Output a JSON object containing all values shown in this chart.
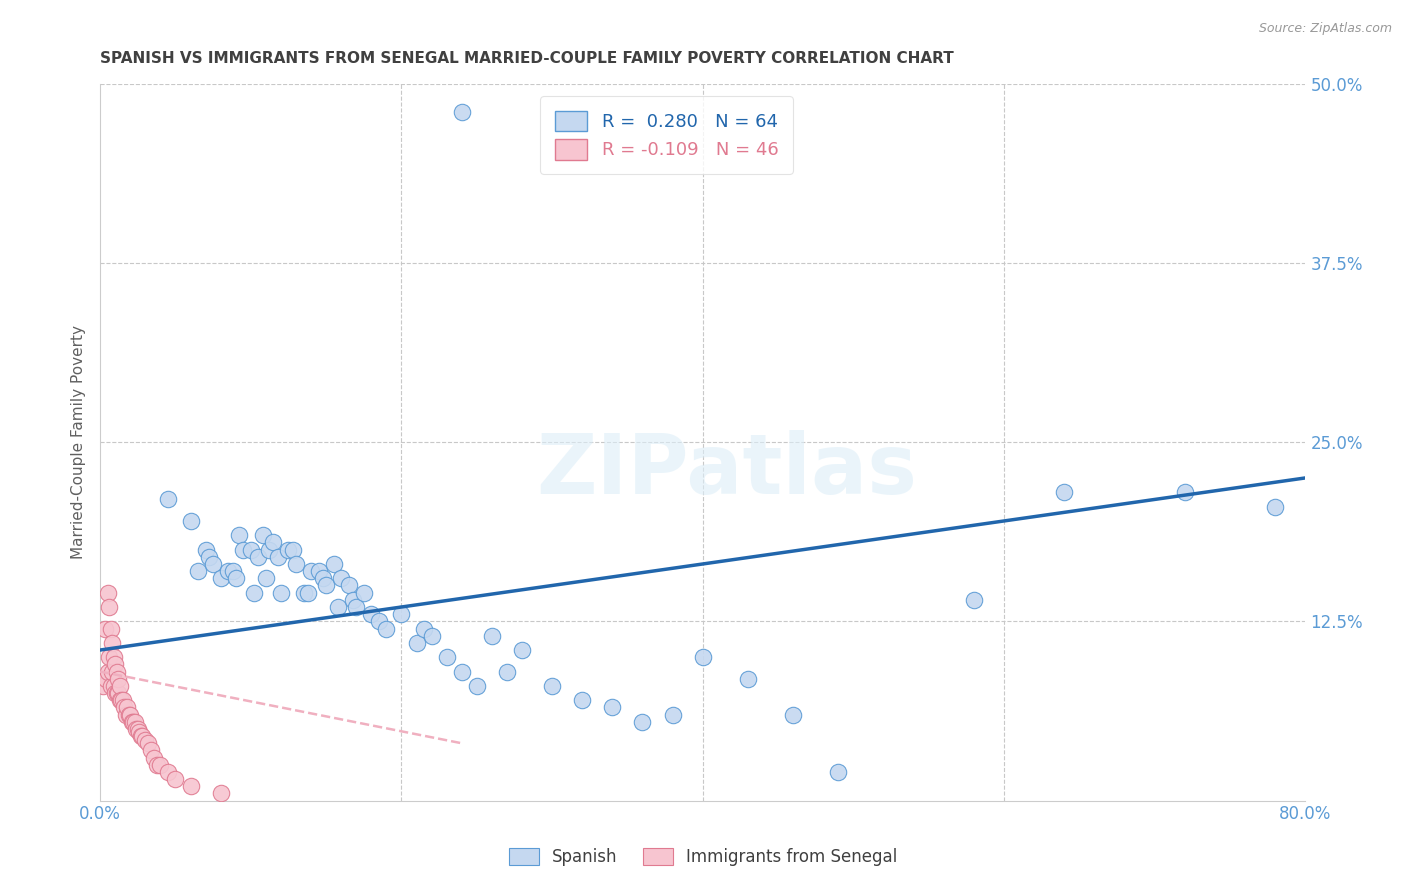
{
  "title": "SPANISH VS IMMIGRANTS FROM SENEGAL MARRIED-COUPLE FAMILY POVERTY CORRELATION CHART",
  "source": "Source: ZipAtlas.com",
  "ylabel": "Married-Couple Family Poverty",
  "xlim": [
    0.0,
    0.8
  ],
  "ylim": [
    0.0,
    0.5
  ],
  "legend_R1": "R =  0.280",
  "legend_N1": "N = 64",
  "legend_R2": "R = -0.109",
  "legend_N2": "N = 46",
  "color_spanish_fill": "#c5d8f0",
  "color_spanish_edge": "#5b9bd5",
  "color_senegal_fill": "#f7c5d0",
  "color_senegal_edge": "#e07a90",
  "color_line_spanish": "#2166ac",
  "color_line_senegal": "#f0b0c0",
  "watermark": "ZIPatlas",
  "background_color": "#ffffff",
  "grid_color": "#c8c8c8",
  "title_color": "#404040",
  "axis_label_color": "#606060",
  "tick_color": "#5b9bd5",
  "spanish_x": [
    0.24,
    0.045,
    0.06,
    0.065,
    0.07,
    0.072,
    0.075,
    0.08,
    0.085,
    0.088,
    0.09,
    0.092,
    0.095,
    0.1,
    0.102,
    0.105,
    0.108,
    0.11,
    0.112,
    0.115,
    0.118,
    0.12,
    0.125,
    0.128,
    0.13,
    0.135,
    0.138,
    0.14,
    0.145,
    0.148,
    0.15,
    0.155,
    0.158,
    0.16,
    0.165,
    0.168,
    0.17,
    0.175,
    0.18,
    0.185,
    0.19,
    0.2,
    0.21,
    0.215,
    0.22,
    0.23,
    0.24,
    0.25,
    0.26,
    0.27,
    0.28,
    0.3,
    0.32,
    0.34,
    0.36,
    0.38,
    0.4,
    0.43,
    0.46,
    0.49,
    0.58,
    0.64,
    0.72,
    0.78
  ],
  "spanish_y": [
    0.48,
    0.21,
    0.195,
    0.16,
    0.175,
    0.17,
    0.165,
    0.155,
    0.16,
    0.16,
    0.155,
    0.185,
    0.175,
    0.175,
    0.145,
    0.17,
    0.185,
    0.155,
    0.175,
    0.18,
    0.17,
    0.145,
    0.175,
    0.175,
    0.165,
    0.145,
    0.145,
    0.16,
    0.16,
    0.155,
    0.15,
    0.165,
    0.135,
    0.155,
    0.15,
    0.14,
    0.135,
    0.145,
    0.13,
    0.125,
    0.12,
    0.13,
    0.11,
    0.12,
    0.115,
    0.1,
    0.09,
    0.08,
    0.115,
    0.09,
    0.105,
    0.08,
    0.07,
    0.065,
    0.055,
    0.06,
    0.1,
    0.085,
    0.06,
    0.02,
    0.14,
    0.215,
    0.215,
    0.205
  ],
  "senegal_x": [
    0.002,
    0.003,
    0.004,
    0.005,
    0.005,
    0.006,
    0.006,
    0.007,
    0.007,
    0.008,
    0.008,
    0.009,
    0.009,
    0.01,
    0.01,
    0.011,
    0.011,
    0.012,
    0.012,
    0.013,
    0.013,
    0.014,
    0.015,
    0.016,
    0.017,
    0.018,
    0.019,
    0.02,
    0.021,
    0.022,
    0.023,
    0.024,
    0.025,
    0.026,
    0.027,
    0.028,
    0.03,
    0.032,
    0.034,
    0.036,
    0.038,
    0.04,
    0.045,
    0.05,
    0.06,
    0.08
  ],
  "senegal_y": [
    0.08,
    0.12,
    0.085,
    0.09,
    0.145,
    0.1,
    0.135,
    0.08,
    0.12,
    0.09,
    0.11,
    0.08,
    0.1,
    0.075,
    0.095,
    0.075,
    0.09,
    0.075,
    0.085,
    0.07,
    0.08,
    0.07,
    0.07,
    0.065,
    0.06,
    0.065,
    0.06,
    0.06,
    0.055,
    0.055,
    0.055,
    0.05,
    0.05,
    0.048,
    0.045,
    0.045,
    0.042,
    0.04,
    0.035,
    0.03,
    0.025,
    0.025,
    0.02,
    0.015,
    0.01,
    0.005
  ],
  "sp_line_x": [
    0.0,
    0.8
  ],
  "sp_line_y": [
    0.105,
    0.225
  ],
  "sn_line_x": [
    0.0,
    0.24
  ],
  "sn_line_y": [
    0.09,
    0.04
  ]
}
